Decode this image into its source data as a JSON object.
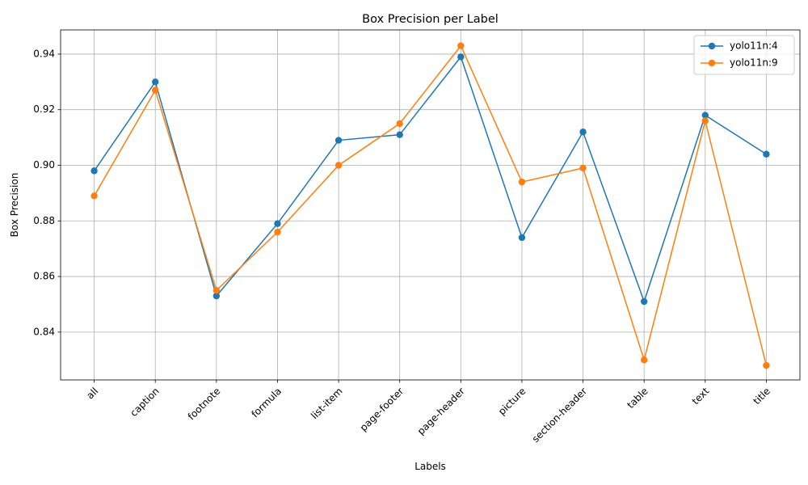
{
  "chart_data": {
    "type": "line",
    "title": "Box Precision per Label",
    "xlabel": "Labels",
    "ylabel": "Box Precision",
    "categories": [
      "all",
      "caption",
      "footnote",
      "formula",
      "list-item",
      "page-footer",
      "page-header",
      "picture",
      "section-header",
      "table",
      "text",
      "title"
    ],
    "ylim": [
      0.8228,
      0.9487
    ],
    "yticks": [
      0.84,
      0.86,
      0.88,
      0.9,
      0.92,
      0.94
    ],
    "ytick_labels": [
      "0.84",
      "0.86",
      "0.88",
      "0.90",
      "0.92",
      "0.94"
    ],
    "grid": true,
    "legend_position": "top-right",
    "series": [
      {
        "name": "yolo11n:4",
        "color": "#1f77b4",
        "values": [
          0.898,
          0.93,
          0.853,
          0.879,
          0.909,
          0.911,
          0.939,
          0.874,
          0.912,
          0.851,
          0.918,
          0.904
        ]
      },
      {
        "name": "yolo11n:9",
        "color": "#ff7f0e",
        "values": [
          0.889,
          0.927,
          0.855,
          0.876,
          0.9,
          0.915,
          0.943,
          0.894,
          0.899,
          0.83,
          0.916,
          0.828
        ]
      }
    ]
  }
}
